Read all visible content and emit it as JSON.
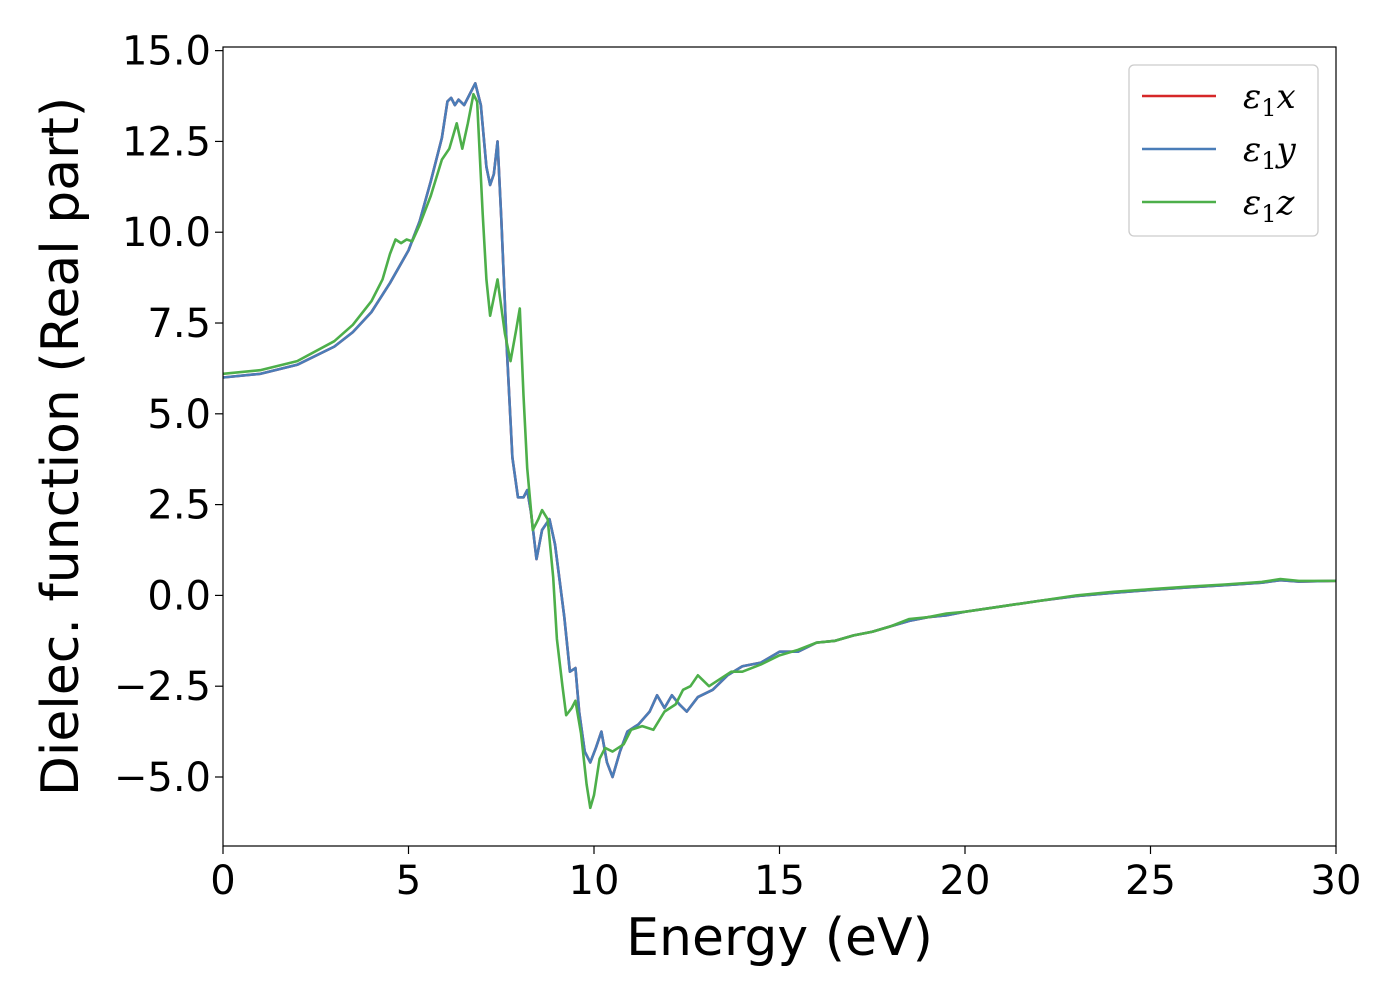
{
  "chart_data": {
    "type": "line",
    "title": "",
    "xlabel": "Energy (eV)",
    "ylabel": "Dielec. function (Real part)",
    "xlim": [
      0,
      30
    ],
    "ylim": [
      -6.9,
      15.1
    ],
    "xticks": [
      0,
      5,
      10,
      15,
      20,
      25,
      30
    ],
    "xtick_labels": [
      "0",
      "5",
      "10",
      "15",
      "20",
      "25",
      "30"
    ],
    "yticks": [
      -5.0,
      -2.5,
      0.0,
      2.5,
      5.0,
      7.5,
      10.0,
      12.5,
      15.0
    ],
    "ytick_labels": [
      "−5.0",
      "−2.5",
      "0.0",
      "2.5",
      "5.0",
      "7.5",
      "10.0",
      "12.5",
      "15.0"
    ],
    "grid": false,
    "legend_position": "top-right",
    "series": [
      {
        "name": "ε1x",
        "name_base": "ε",
        "name_sub": "1",
        "name_var": "x",
        "color": "#d62728",
        "points": [
          [
            0,
            6.0
          ],
          [
            1,
            6.1
          ],
          [
            2,
            6.35
          ],
          [
            3,
            6.85
          ],
          [
            3.5,
            7.25
          ],
          [
            4,
            7.8
          ],
          [
            4.5,
            8.6
          ],
          [
            5,
            9.5
          ],
          [
            5.3,
            10.3
          ],
          [
            5.6,
            11.4
          ],
          [
            5.9,
            12.6
          ],
          [
            6.05,
            13.6
          ],
          [
            6.15,
            13.7
          ],
          [
            6.25,
            13.5
          ],
          [
            6.35,
            13.65
          ],
          [
            6.5,
            13.5
          ],
          [
            6.6,
            13.7
          ],
          [
            6.8,
            14.1
          ],
          [
            6.95,
            13.5
          ],
          [
            7.1,
            11.8
          ],
          [
            7.2,
            11.3
          ],
          [
            7.3,
            11.6
          ],
          [
            7.4,
            12.5
          ],
          [
            7.5,
            10.4
          ],
          [
            7.65,
            6.8
          ],
          [
            7.8,
            3.8
          ],
          [
            7.95,
            2.7
          ],
          [
            8.1,
            2.7
          ],
          [
            8.2,
            2.9
          ],
          [
            8.3,
            2.3
          ],
          [
            8.45,
            1.0
          ],
          [
            8.6,
            1.8
          ],
          [
            8.8,
            2.1
          ],
          [
            8.95,
            1.4
          ],
          [
            9.2,
            -0.6
          ],
          [
            9.35,
            -2.1
          ],
          [
            9.5,
            -2.0
          ],
          [
            9.6,
            -3.2
          ],
          [
            9.75,
            -4.3
          ],
          [
            9.9,
            -4.6
          ],
          [
            10.05,
            -4.2
          ],
          [
            10.2,
            -3.75
          ],
          [
            10.35,
            -4.6
          ],
          [
            10.5,
            -5.0
          ],
          [
            10.7,
            -4.3
          ],
          [
            10.9,
            -3.75
          ],
          [
            11.2,
            -3.55
          ],
          [
            11.5,
            -3.2
          ],
          [
            11.7,
            -2.75
          ],
          [
            11.9,
            -3.1
          ],
          [
            12.1,
            -2.75
          ],
          [
            12.3,
            -3.0
          ],
          [
            12.5,
            -3.2
          ],
          [
            12.8,
            -2.8
          ],
          [
            13.2,
            -2.6
          ],
          [
            13.6,
            -2.2
          ],
          [
            14,
            -1.95
          ],
          [
            14.5,
            -1.85
          ],
          [
            15,
            -1.55
          ],
          [
            15.5,
            -1.55
          ],
          [
            16,
            -1.3
          ],
          [
            16.5,
            -1.25
          ],
          [
            17,
            -1.1
          ],
          [
            17.5,
            -1.0
          ],
          [
            18,
            -0.85
          ],
          [
            18.5,
            -0.7
          ],
          [
            19,
            -0.6
          ],
          [
            19.5,
            -0.55
          ],
          [
            20,
            -0.45
          ],
          [
            21,
            -0.3
          ],
          [
            22,
            -0.15
          ],
          [
            23,
            -0.02
          ],
          [
            24,
            0.07
          ],
          [
            25,
            0.15
          ],
          [
            26,
            0.22
          ],
          [
            27,
            0.28
          ],
          [
            28,
            0.35
          ],
          [
            28.5,
            0.42
          ],
          [
            29,
            0.38
          ],
          [
            30,
            0.4
          ]
        ]
      },
      {
        "name": "ε1y",
        "name_base": "ε",
        "name_sub": "1",
        "name_var": "y",
        "color": "#4a7db8",
        "points": [
          [
            0,
            6.0
          ],
          [
            1,
            6.1
          ],
          [
            2,
            6.35
          ],
          [
            3,
            6.85
          ],
          [
            3.5,
            7.25
          ],
          [
            4,
            7.8
          ],
          [
            4.5,
            8.6
          ],
          [
            5,
            9.5
          ],
          [
            5.3,
            10.3
          ],
          [
            5.6,
            11.4
          ],
          [
            5.9,
            12.6
          ],
          [
            6.05,
            13.6
          ],
          [
            6.15,
            13.7
          ],
          [
            6.25,
            13.5
          ],
          [
            6.35,
            13.65
          ],
          [
            6.5,
            13.5
          ],
          [
            6.6,
            13.7
          ],
          [
            6.8,
            14.1
          ],
          [
            6.95,
            13.5
          ],
          [
            7.1,
            11.8
          ],
          [
            7.2,
            11.3
          ],
          [
            7.3,
            11.6
          ],
          [
            7.4,
            12.5
          ],
          [
            7.5,
            10.4
          ],
          [
            7.65,
            6.8
          ],
          [
            7.8,
            3.8
          ],
          [
            7.95,
            2.7
          ],
          [
            8.1,
            2.7
          ],
          [
            8.2,
            2.9
          ],
          [
            8.3,
            2.3
          ],
          [
            8.45,
            1.0
          ],
          [
            8.6,
            1.8
          ],
          [
            8.8,
            2.1
          ],
          [
            8.95,
            1.4
          ],
          [
            9.2,
            -0.6
          ],
          [
            9.35,
            -2.1
          ],
          [
            9.5,
            -2.0
          ],
          [
            9.6,
            -3.2
          ],
          [
            9.75,
            -4.3
          ],
          [
            9.9,
            -4.6
          ],
          [
            10.05,
            -4.2
          ],
          [
            10.2,
            -3.75
          ],
          [
            10.35,
            -4.6
          ],
          [
            10.5,
            -5.0
          ],
          [
            10.7,
            -4.3
          ],
          [
            10.9,
            -3.75
          ],
          [
            11.2,
            -3.55
          ],
          [
            11.5,
            -3.2
          ],
          [
            11.7,
            -2.75
          ],
          [
            11.9,
            -3.1
          ],
          [
            12.1,
            -2.75
          ],
          [
            12.3,
            -3.0
          ],
          [
            12.5,
            -3.2
          ],
          [
            12.8,
            -2.8
          ],
          [
            13.2,
            -2.6
          ],
          [
            13.6,
            -2.2
          ],
          [
            14,
            -1.95
          ],
          [
            14.5,
            -1.85
          ],
          [
            15,
            -1.55
          ],
          [
            15.5,
            -1.55
          ],
          [
            16,
            -1.3
          ],
          [
            16.5,
            -1.25
          ],
          [
            17,
            -1.1
          ],
          [
            17.5,
            -1.0
          ],
          [
            18,
            -0.85
          ],
          [
            18.5,
            -0.7
          ],
          [
            19,
            -0.6
          ],
          [
            19.5,
            -0.55
          ],
          [
            20,
            -0.45
          ],
          [
            21,
            -0.3
          ],
          [
            22,
            -0.15
          ],
          [
            23,
            -0.02
          ],
          [
            24,
            0.07
          ],
          [
            25,
            0.15
          ],
          [
            26,
            0.22
          ],
          [
            27,
            0.28
          ],
          [
            28,
            0.35
          ],
          [
            28.5,
            0.42
          ],
          [
            29,
            0.38
          ],
          [
            30,
            0.4
          ]
        ]
      },
      {
        "name": "ε1z",
        "name_base": "ε",
        "name_sub": "1",
        "name_var": "z",
        "color": "#4daf4a",
        "points": [
          [
            0,
            6.1
          ],
          [
            1,
            6.2
          ],
          [
            2,
            6.45
          ],
          [
            3,
            7.0
          ],
          [
            3.5,
            7.45
          ],
          [
            4,
            8.1
          ],
          [
            4.3,
            8.7
          ],
          [
            4.5,
            9.4
          ],
          [
            4.65,
            9.8
          ],
          [
            4.8,
            9.7
          ],
          [
            4.95,
            9.8
          ],
          [
            5.1,
            9.75
          ],
          [
            5.3,
            10.2
          ],
          [
            5.6,
            11.0
          ],
          [
            5.9,
            12.0
          ],
          [
            6.1,
            12.3
          ],
          [
            6.3,
            13.0
          ],
          [
            6.45,
            12.3
          ],
          [
            6.6,
            13.0
          ],
          [
            6.75,
            13.8
          ],
          [
            6.85,
            13.6
          ],
          [
            7.0,
            10.5
          ],
          [
            7.1,
            8.7
          ],
          [
            7.2,
            7.7
          ],
          [
            7.3,
            8.2
          ],
          [
            7.4,
            8.7
          ],
          [
            7.6,
            7.2
          ],
          [
            7.75,
            6.45
          ],
          [
            7.9,
            7.3
          ],
          [
            8.0,
            7.9
          ],
          [
            8.1,
            5.5
          ],
          [
            8.2,
            3.5
          ],
          [
            8.35,
            1.8
          ],
          [
            8.5,
            2.1
          ],
          [
            8.6,
            2.35
          ],
          [
            8.75,
            2.1
          ],
          [
            8.9,
            0.5
          ],
          [
            9.0,
            -1.2
          ],
          [
            9.15,
            -2.5
          ],
          [
            9.25,
            -3.3
          ],
          [
            9.4,
            -3.1
          ],
          [
            9.5,
            -2.9
          ],
          [
            9.65,
            -3.8
          ],
          [
            9.8,
            -5.2
          ],
          [
            9.9,
            -5.85
          ],
          [
            10.0,
            -5.5
          ],
          [
            10.15,
            -4.5
          ],
          [
            10.3,
            -4.2
          ],
          [
            10.5,
            -4.3
          ],
          [
            10.8,
            -4.1
          ],
          [
            11.0,
            -3.7
          ],
          [
            11.3,
            -3.6
          ],
          [
            11.6,
            -3.7
          ],
          [
            11.9,
            -3.2
          ],
          [
            12.2,
            -3.0
          ],
          [
            12.4,
            -2.6
          ],
          [
            12.6,
            -2.5
          ],
          [
            12.8,
            -2.2
          ],
          [
            13.1,
            -2.5
          ],
          [
            13.4,
            -2.3
          ],
          [
            13.7,
            -2.1
          ],
          [
            14.0,
            -2.1
          ],
          [
            14.5,
            -1.9
          ],
          [
            15.0,
            -1.65
          ],
          [
            15.5,
            -1.5
          ],
          [
            16.0,
            -1.3
          ],
          [
            16.5,
            -1.25
          ],
          [
            17,
            -1.1
          ],
          [
            17.5,
            -1.0
          ],
          [
            18,
            -0.85
          ],
          [
            18.5,
            -0.65
          ],
          [
            19,
            -0.6
          ],
          [
            19.5,
            -0.5
          ],
          [
            20,
            -0.45
          ],
          [
            21,
            -0.3
          ],
          [
            22,
            -0.15
          ],
          [
            23,
            0.0
          ],
          [
            24,
            0.1
          ],
          [
            25,
            0.17
          ],
          [
            26,
            0.24
          ],
          [
            27,
            0.3
          ],
          [
            28,
            0.37
          ],
          [
            28.5,
            0.45
          ],
          [
            29,
            0.4
          ],
          [
            30,
            0.4
          ]
        ]
      }
    ]
  }
}
